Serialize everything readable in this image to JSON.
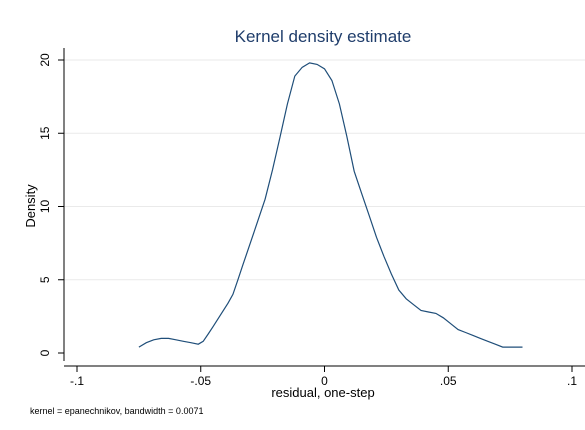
{
  "chart_data": {
    "type": "line",
    "title": "Kernel density estimate",
    "xlabel": "residual, one-step",
    "ylabel": "Density",
    "note": "kernel = epanechnikov, bandwidth = 0.0071",
    "xlim": [
      -0.1,
      0.1
    ],
    "ylim": [
      0,
      20
    ],
    "x_ticks": [
      -0.1,
      -0.05,
      0,
      0.05,
      0.1
    ],
    "x_tick_labels": [
      "-.1",
      "-.05",
      "0",
      ".05",
      ".1"
    ],
    "y_ticks": [
      0,
      5,
      10,
      15,
      20
    ],
    "y_tick_labels": [
      "0",
      "5",
      "10",
      "15",
      "20"
    ],
    "grid": "horizontal",
    "line_color": "#1f4e79",
    "title_color": "#1f3d6b",
    "series": [
      {
        "x": [
          -0.075,
          -0.072,
          -0.069,
          -0.066,
          -0.063,
          -0.06,
          -0.057,
          -0.054,
          -0.051,
          -0.049,
          -0.047,
          -0.045,
          -0.042,
          -0.039,
          -0.037,
          -0.035,
          -0.033,
          -0.03,
          -0.027,
          -0.024,
          -0.021,
          -0.018,
          -0.015,
          -0.012,
          -0.009,
          -0.006,
          -0.003,
          0.0,
          0.003,
          0.006,
          0.009,
          0.012,
          0.015,
          0.018,
          0.021,
          0.024,
          0.027,
          0.03,
          0.033,
          0.036,
          0.039,
          0.042,
          0.045,
          0.048,
          0.051,
          0.054,
          0.057,
          0.06,
          0.063,
          0.066,
          0.069,
          0.072,
          0.075,
          0.078,
          0.08
        ],
        "y": [
          0.4,
          0.7,
          0.9,
          1.0,
          1.0,
          0.9,
          0.8,
          0.7,
          0.6,
          0.8,
          1.3,
          1.8,
          2.6,
          3.4,
          4.0,
          5.0,
          6.0,
          7.5,
          9.0,
          10.5,
          12.5,
          14.7,
          17.0,
          18.9,
          19.5,
          19.8,
          19.7,
          19.4,
          18.6,
          17.0,
          14.8,
          12.4,
          10.9,
          9.4,
          7.9,
          6.6,
          5.4,
          4.3,
          3.7,
          3.3,
          2.9,
          2.8,
          2.7,
          2.4,
          2.0,
          1.6,
          1.4,
          1.2,
          1.0,
          0.8,
          0.6,
          0.4,
          0.4,
          0.4,
          0.4
        ]
      }
    ]
  }
}
